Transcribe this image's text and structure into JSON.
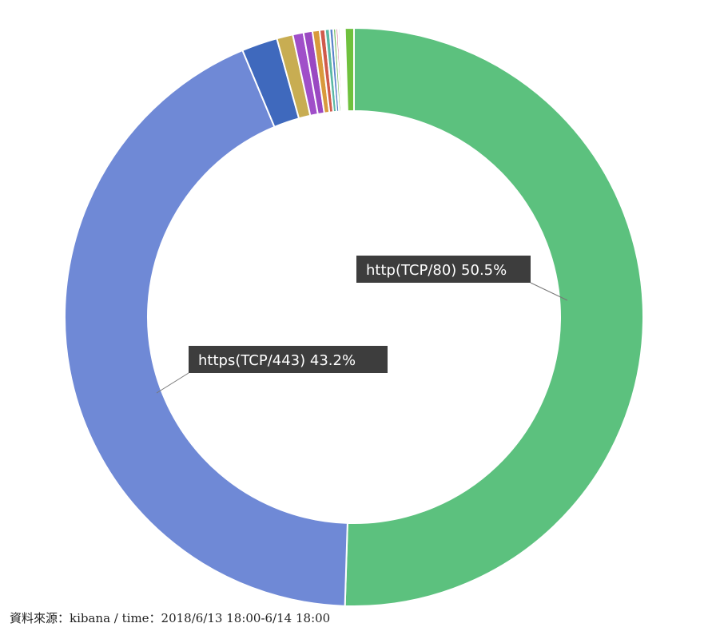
{
  "chart_data": {
    "type": "pie",
    "variant": "donut",
    "slices": [
      {
        "label": "http(TCP/80)",
        "value": 50.5,
        "color": "#5cc17e"
      },
      {
        "label": "https(TCP/443)",
        "value": 43.2,
        "color": "#6f89d6"
      },
      {
        "label": "",
        "value": 2.0,
        "color": "#3f69bd"
      },
      {
        "label": "",
        "value": 0.9,
        "color": "#c8ad52"
      },
      {
        "label": "",
        "value": 0.6,
        "color": "#a04fc9"
      },
      {
        "label": "",
        "value": 0.5,
        "color": "#9a48c2"
      },
      {
        "label": "",
        "value": 0.4,
        "color": "#d99a3c"
      },
      {
        "label": "",
        "value": 0.3,
        "color": "#d05a4b"
      },
      {
        "label": "",
        "value": 0.25,
        "color": "#5ab8a4"
      },
      {
        "label": "",
        "value": 0.2,
        "color": "#5a82c9"
      },
      {
        "label": "",
        "value": 0.15,
        "color": "#7bbf6a"
      },
      {
        "label": "",
        "value": 0.12,
        "color": "#cf6a8f"
      },
      {
        "label": "",
        "value": 0.1,
        "color": "#8fc0d9"
      },
      {
        "label": "",
        "value": 0.08,
        "color": "#e0c36a"
      },
      {
        "label": "",
        "value": 0.06,
        "color": "#b0b0b0"
      },
      {
        "label": "",
        "value": 0.05,
        "color": "#d4b8e4"
      },
      {
        "label": "",
        "value": 0.05,
        "color": "#f0b0a0"
      },
      {
        "label": "",
        "value": 0.04,
        "color": "#a7d8c9"
      },
      {
        "label": "",
        "value": 0.5,
        "color": "#6fc13e"
      }
    ],
    "callouts": [
      {
        "text": "http(TCP/80) 50.5%",
        "slice": 0
      },
      {
        "text": "https(TCP/443) 43.2%",
        "slice": 1
      }
    ],
    "legend": "none"
  },
  "footer": {
    "source": "資料來源：kibana / time：2018/6/13 18:00-6/14 18:00"
  }
}
